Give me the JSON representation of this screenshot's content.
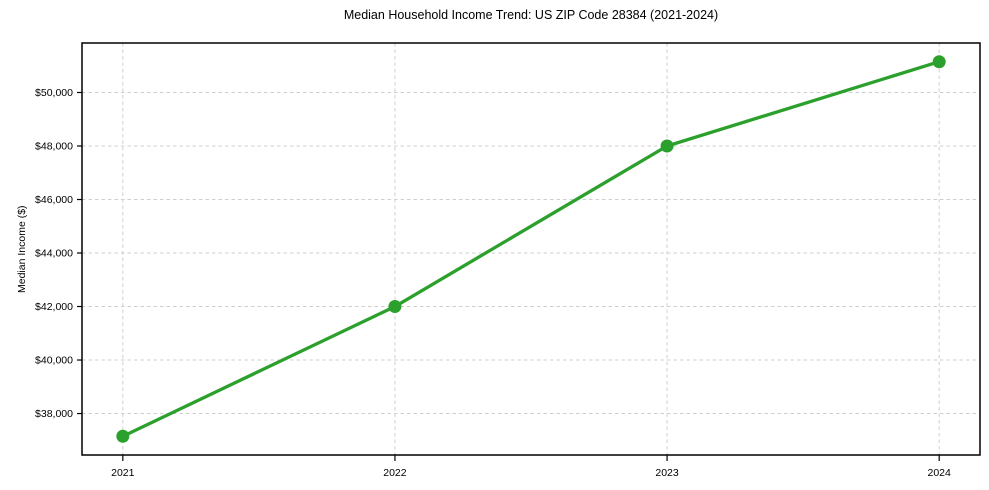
{
  "figure": {
    "background": "#ffffff"
  },
  "chart_data": {
    "type": "line",
    "title": "Median Household Income Trend: US ZIP Code 28384 (2021-2024)",
    "xlabel": "",
    "ylabel": "Median Income ($)",
    "x": [
      2021,
      2022,
      2023,
      2024
    ],
    "values": [
      37150,
      42000,
      48000,
      51150
    ],
    "xlim": [
      2020.85,
      2024.15
    ],
    "ylim": [
      36450,
      51850
    ],
    "xticks": [
      2021,
      2022,
      2023,
      2024
    ],
    "xtick_labels": [
      "2021",
      "2022",
      "2023",
      "2024"
    ],
    "yticks": [
      38000,
      40000,
      42000,
      44000,
      46000,
      48000,
      50000
    ],
    "ytick_labels": [
      "$38,000",
      "$40,000",
      "$42,000",
      "$44,000",
      "$46,000",
      "$48,000",
      "$50,000"
    ],
    "grid": "dashed, both axes",
    "legend": "none",
    "line_color": "#2ca02c",
    "marker": "circle",
    "marker_color": "#2ca02c",
    "grid_color": "#cfcfcf",
    "spine_color": "#000000",
    "text_color": "#000000"
  }
}
